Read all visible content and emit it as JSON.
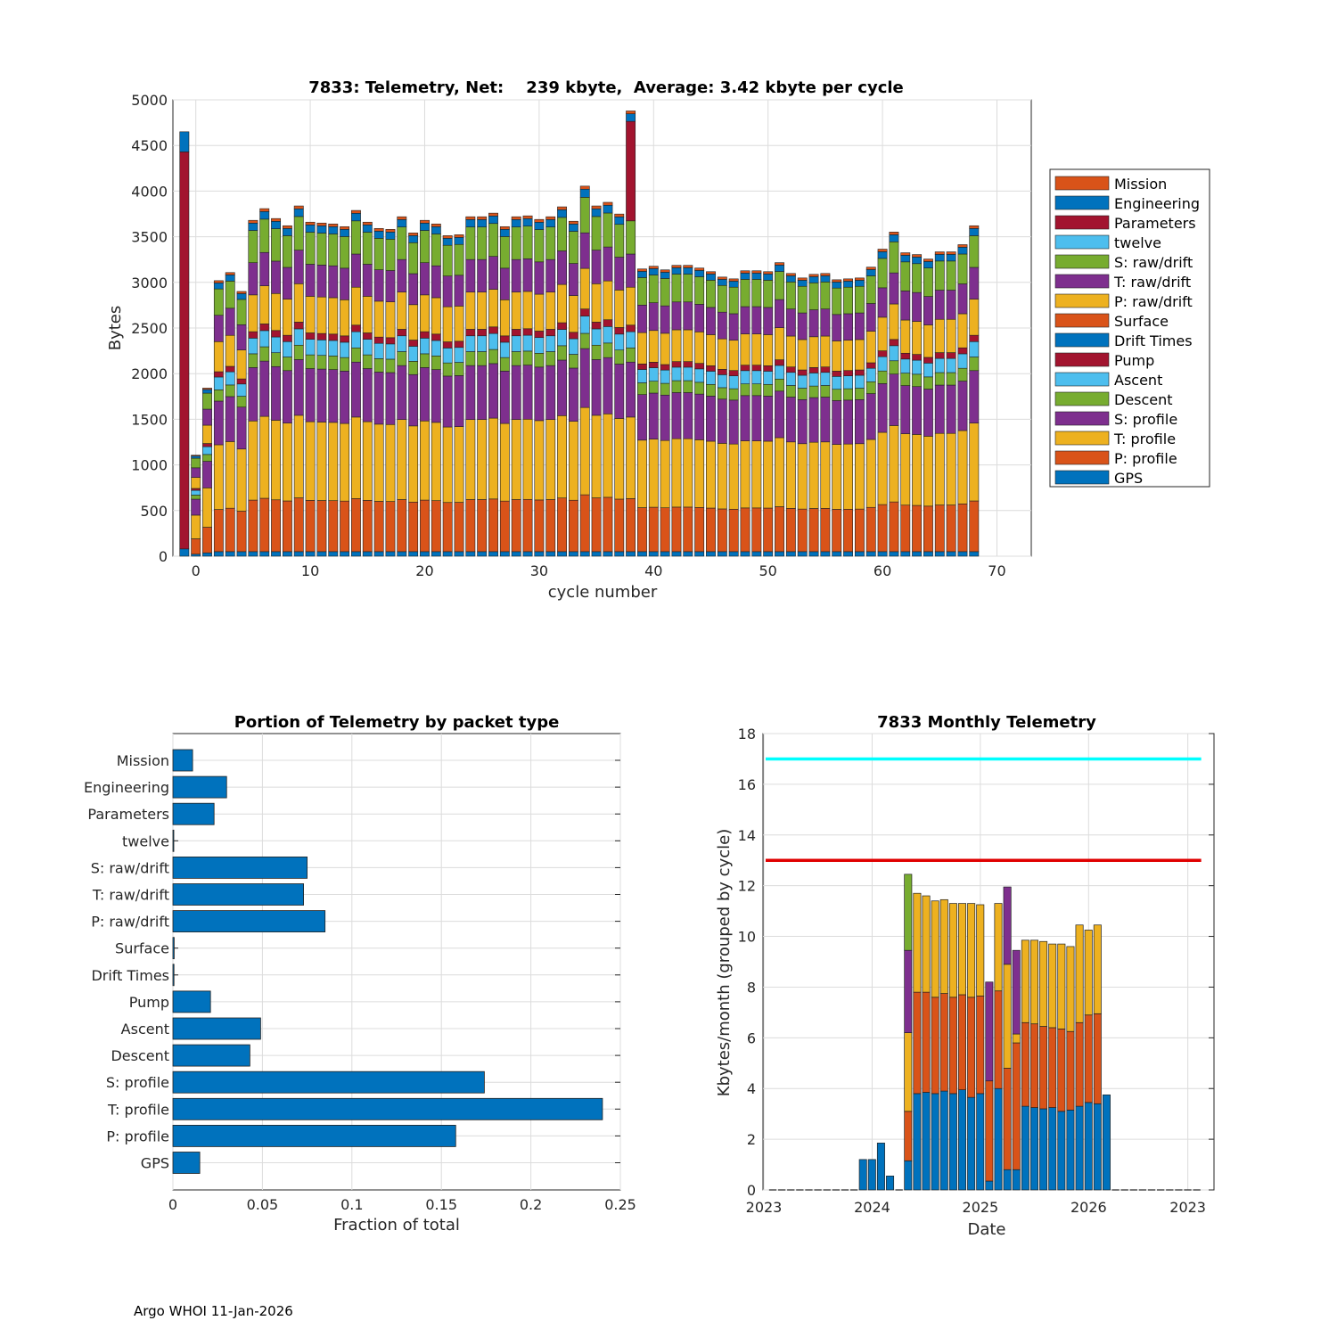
{
  "footer": "Argo WHOI 11-Jan-2026",
  "colors": {
    "Mission": "#D95319",
    "Engineering": "#0072BD",
    "Parameters": "#A2142F",
    "twelve": "#4DBEEE",
    "S: raw/drift": "#77AC30",
    "T: raw/drift": "#7E2F8E",
    "P: raw/drift": "#EDB120",
    "Surface": "#D95319",
    "Drift Times": "#0072BD",
    "Pump": "#A2142F",
    "Ascent": "#4DBEEE",
    "Descent": "#77AC30",
    "S: profile": "#7E2F8E",
    "T: profile": "#EDB120",
    "P: profile": "#D95319",
    "GPS": "#0072BD",
    "cyan_line": "#00FFFF",
    "red_line": "#E00000",
    "bar_blue": "#0072BD"
  },
  "chart_data": [
    {
      "type": "bar",
      "stacked": true,
      "title": "7833: Telemetry, Net:    239 kbyte,  Average: 3.42 kbyte per cycle",
      "xlabel": "cycle number",
      "ylabel": "Bytes",
      "xlim": [
        -2,
        73
      ],
      "ylim": [
        0,
        5000
      ],
      "xticks": [
        0,
        10,
        20,
        30,
        40,
        50,
        60,
        70
      ],
      "yticks": [
        0,
        500,
        1000,
        1500,
        2000,
        2500,
        3000,
        3500,
        4000,
        4500,
        5000
      ],
      "legend_location": "outside-right",
      "legend": [
        "Mission",
        "Engineering",
        "Parameters",
        "twelve",
        "S: raw/drift",
        "T: raw/drift",
        "P: raw/drift",
        "Surface",
        "Drift Times",
        "Pump",
        "Ascent",
        "Descent",
        "S: profile",
        "T: profile",
        "P: profile",
        "GPS"
      ],
      "series_order_bottom_to_top": [
        "GPS",
        "P: profile",
        "T: profile",
        "S: profile",
        "Descent",
        "Ascent",
        "Pump",
        "Drift Times",
        "Surface",
        "P: raw/drift",
        "T: raw/drift",
        "S: raw/drift",
        "twelve",
        "Parameters",
        "Engineering",
        "Mission"
      ],
      "cycles": {
        "x": [
          -1,
          0,
          1,
          2,
          3,
          4,
          5,
          6,
          7,
          8,
          9,
          10,
          11,
          12,
          13,
          14,
          15,
          16,
          17,
          18,
          19,
          20,
          21,
          22,
          23,
          24,
          25,
          26,
          27,
          28,
          29,
          30,
          31,
          32,
          33,
          34,
          35,
          36,
          37,
          38,
          39,
          40,
          41,
          42,
          43,
          44,
          45,
          46,
          47,
          48,
          49,
          50,
          51,
          52,
          53,
          54,
          55,
          56,
          57,
          58,
          59,
          60,
          61,
          62,
          63,
          64,
          65,
          66,
          67,
          68
        ],
        "totals": [
          4650,
          1100,
          1830,
          3010,
          3100,
          2890,
          3680,
          3810,
          3700,
          3620,
          3840,
          3660,
          3650,
          3640,
          3610,
          3790,
          3660,
          3590,
          3580,
          3720,
          3540,
          3680,
          3640,
          3510,
          3520,
          3720,
          3720,
          3760,
          3610,
          3720,
          3730,
          3690,
          3720,
          3830,
          3670,
          4060,
          3840,
          3880,
          3750,
          4880,
          3140,
          3170,
          3130,
          3180,
          3180,
          3150,
          3110,
          3050,
          3030,
          3120,
          3120,
          3110,
          3210,
          3090,
          3040,
          3080,
          3090,
          3020,
          3030,
          3040,
          3160,
          3360,
          3550,
          3320,
          3300,
          3250,
          3330,
          3330,
          3410,
          3620
        ]
      },
      "typical_cycle_bytes": {
        "GPS": 50,
        "P: profile": 560,
        "T: profile": 860,
        "S: profile": 580,
        "Descent": 150,
        "Ascent": 170,
        "Pump": 70,
        "Drift Times": 0,
        "Surface": 0,
        "P: raw/drift": 400,
        "T: raw/drift": 350,
        "S: raw/drift": 350,
        "twelve": 0,
        "Parameters": 0,
        "Engineering": 80,
        "Mission": 30
      },
      "special_cycles": {
        "-1": {
          "GPS": 80,
          "Parameters": 4350,
          "Engineering": 220
        },
        "38": {
          "Parameters": 1090
        }
      }
    },
    {
      "type": "bar",
      "orientation": "horizontal",
      "title": "Portion of Telemetry by packet type",
      "xlabel": "Fraction of total",
      "ylabel": "",
      "xlim": [
        0,
        0.25
      ],
      "xticks": [
        "0",
        "0.05",
        "0.1",
        "0.15",
        "0.2",
        "0.25"
      ],
      "categories": [
        "Mission",
        "Engineering",
        "Parameters",
        "twelve",
        "S: raw/drift",
        "T: raw/drift",
        "P: raw/drift",
        "Surface",
        "Drift Times",
        "Pump",
        "Ascent",
        "Descent",
        "S: profile",
        "T: profile",
        "P: profile",
        "GPS"
      ],
      "values": [
        0.011,
        0.03,
        0.023,
        0.0005,
        0.075,
        0.073,
        0.085,
        0.0007,
        0.0006,
        0.021,
        0.049,
        0.043,
        0.174,
        0.24,
        0.158,
        0.015
      ]
    },
    {
      "type": "bar",
      "stacked": true,
      "title": "7833 Monthly Telemetry",
      "xlabel": "Date",
      "ylabel": "Kbytes/month (grouped by cycle)",
      "ylim": [
        0,
        18
      ],
      "yticks": [
        0,
        2,
        4,
        6,
        8,
        10,
        12,
        14,
        16,
        18
      ],
      "xtick_labels": [
        "2023",
        "2024",
        "2025",
        "2026",
        "2023"
      ],
      "hlines": [
        {
          "y": 17,
          "color": "cyan"
        },
        {
          "y": 13,
          "color": "red"
        }
      ],
      "months": [
        "2023-01",
        "2023-02",
        "2023-03",
        "2023-04",
        "2023-05",
        "2023-06",
        "2023-07",
        "2023-08",
        "2023-09",
        "2023-10",
        "2023-11",
        "2023-12",
        "2024-01",
        "2024-02",
        "2024-03",
        "2024-04",
        "2024-05",
        "2024-06",
        "2024-07",
        "2024-08",
        "2024-09",
        "2024-10",
        "2024-11",
        "2024-12",
        "2025-01",
        "2025-02",
        "2025-03",
        "2025-04",
        "2025-05",
        "2025-06",
        "2025-07",
        "2025-08",
        "2025-09",
        "2025-10",
        "2025-11",
        "2025-12",
        "2026-01",
        "2026-02",
        "2026-03",
        "2026-04",
        "2026-05",
        "2026-06",
        "2026-07",
        "2026-08",
        "2026-09",
        "2026-10",
        "2026-11",
        "2026-12"
      ],
      "series": [
        {
          "name": "blue",
          "color": "#0072BD",
          "values": [
            0,
            0,
            0,
            0,
            0,
            0,
            0,
            0,
            0,
            0,
            1.2,
            1.2,
            1.85,
            0.55,
            0,
            1.15,
            3.8,
            3.85,
            3.8,
            3.9,
            3.8,
            3.95,
            3.65,
            3.8,
            0.35,
            4.0,
            0.8,
            0.8,
            3.3,
            3.25,
            3.2,
            3.25,
            3.1,
            3.15,
            3.3,
            3.45,
            3.4,
            3.75,
            0,
            0,
            0,
            0,
            0,
            0,
            0,
            0,
            0,
            0
          ]
        },
        {
          "name": "orange",
          "color": "#D95319",
          "values": [
            0,
            0,
            0,
            0,
            0,
            0,
            0,
            0,
            0,
            0,
            0,
            0,
            0,
            0,
            0,
            1.95,
            4.0,
            3.95,
            3.8,
            3.85,
            3.8,
            3.75,
            3.95,
            3.85,
            3.95,
            3.85,
            4.0,
            5.0,
            3.3,
            3.3,
            3.25,
            3.15,
            3.25,
            3.1,
            3.3,
            3.45,
            3.55,
            0,
            0,
            0,
            0,
            0,
            0,
            0,
            0,
            0,
            0,
            0
          ]
        },
        {
          "name": "yellow",
          "color": "#EDB120",
          "values": [
            0,
            0,
            0,
            0,
            0,
            0,
            0,
            0,
            0,
            0,
            0,
            0,
            0,
            0,
            0,
            3.1,
            3.9,
            3.8,
            3.8,
            3.7,
            3.7,
            3.6,
            3.7,
            3.6,
            0,
            3.45,
            4.1,
            0.35,
            3.25,
            3.3,
            3.35,
            3.3,
            3.35,
            3.35,
            3.85,
            3.35,
            3.5,
            0,
            0,
            0,
            0,
            0,
            0,
            0,
            0,
            0,
            0,
            0
          ]
        },
        {
          "name": "purple",
          "color": "#7E2F8E",
          "values": [
            0,
            0,
            0,
            0,
            0,
            0,
            0,
            0,
            0,
            0,
            0,
            0,
            0,
            0,
            0,
            3.25,
            0,
            0,
            0,
            0,
            0,
            0,
            0,
            0,
            3.9,
            0,
            3.05,
            3.3,
            0,
            0,
            0,
            0,
            0,
            0,
            0,
            0,
            0,
            0,
            0,
            0,
            0,
            0,
            0,
            0,
            0,
            0,
            0,
            0
          ]
        },
        {
          "name": "green",
          "color": "#77AC30",
          "values": [
            0,
            0,
            0,
            0,
            0,
            0,
            0,
            0,
            0,
            0,
            0,
            0,
            0,
            0,
            0,
            3.0,
            0,
            0,
            0,
            0,
            0,
            0,
            0,
            0,
            0,
            0,
            0,
            0,
            0,
            0,
            0,
            0,
            0,
            0,
            0,
            0,
            0,
            0,
            0,
            0,
            0,
            0,
            0,
            0,
            0,
            0,
            0
          ]
        }
      ]
    }
  ]
}
